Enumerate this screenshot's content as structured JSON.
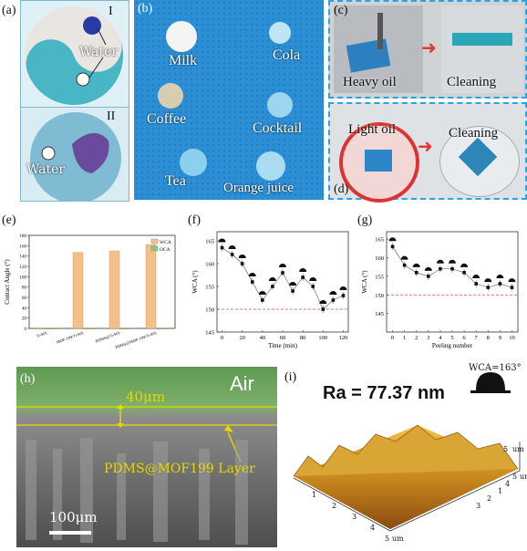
{
  "labels": {
    "a": "(a)",
    "b": "(b)",
    "c": "(c)",
    "d": "(d)",
    "e": "(e)",
    "f": "(f)",
    "g": "(g)",
    "h": "(h)",
    "i": "(i)"
  },
  "panel_a": {
    "roman1": "I",
    "roman2": "II",
    "water_top": "Water",
    "water_bottom": "Water"
  },
  "panel_b": {
    "drinks": [
      "Milk",
      "Cola",
      "Coffee",
      "Cocktail",
      "Tea",
      "Orange juice"
    ]
  },
  "panel_cd": {
    "heavy_oil": "Heavy oil",
    "cleaning_top": "Cleaning",
    "light_oil": "Light oil",
    "cleaning_bottom": "Cleaning"
  },
  "panel_h": {
    "air": "Air",
    "thickness": "40μm",
    "layer": "PDMS@MOF199  Layer",
    "scalebar": "100μm"
  },
  "panel_i": {
    "ra": "Ra = 77.37 nm",
    "wca": "WCA=163°",
    "axis_unit": "um",
    "x_ticks": [
      "1",
      "2",
      "3",
      "4",
      "5"
    ],
    "y_ticks": [
      "1",
      "2",
      "3",
      "4",
      "5"
    ],
    "z_tick": "5"
  },
  "chart_data": [
    {
      "type": "bar",
      "panel": "e",
      "categories": [
        "Ti-WS",
        "MOF-199/Ti-WS",
        "PDMS@Ti-WS",
        "PDMS@MOF-199/Ti-WS"
      ],
      "series": [
        {
          "name": "WCA",
          "values": [
            0,
            147,
            150,
            162
          ],
          "color": "#f2c089"
        },
        {
          "name": "OCA",
          "values": [
            0,
            0,
            0,
            0
          ],
          "color": "#88c98a"
        }
      ],
      "ylabel": "Contact Angle (°)",
      "ylim": [
        0,
        180
      ],
      "yticks": [
        0,
        20,
        40,
        60,
        80,
        100,
        120,
        140,
        160,
        180
      ]
    },
    {
      "type": "scatter",
      "panel": "f",
      "x": [
        0,
        10,
        20,
        30,
        40,
        50,
        60,
        70,
        80,
        90,
        100,
        110,
        120
      ],
      "y": [
        163.5,
        162,
        160,
        156,
        152,
        155,
        158,
        154,
        157,
        155,
        150,
        152,
        153
      ],
      "xlabel": "Time (min)",
      "ylabel": "WCA (°)",
      "xlim": [
        -5,
        125
      ],
      "ylim": [
        145,
        167
      ],
      "xticks": [
        0,
        20,
        40,
        60,
        80,
        100,
        120
      ],
      "yticks": [
        145,
        150,
        155,
        160,
        165
      ],
      "reference_line": 150
    },
    {
      "type": "scatter",
      "panel": "g",
      "x": [
        0,
        1,
        2,
        3,
        4,
        5,
        6,
        7,
        8,
        9,
        10
      ],
      "y": [
        163,
        158,
        156,
        155,
        157,
        157,
        156,
        153,
        152,
        153,
        152
      ],
      "xlabel": "Peeling number",
      "ylabel": "WCA (°)",
      "xlim": [
        -0.5,
        10.5
      ],
      "ylim": [
        140,
        167
      ],
      "xticks": [
        0,
        1,
        2,
        3,
        4,
        5,
        6,
        7,
        8,
        9,
        10
      ],
      "yticks": [
        145,
        150,
        155,
        160,
        165
      ],
      "reference_line": 150
    }
  ]
}
